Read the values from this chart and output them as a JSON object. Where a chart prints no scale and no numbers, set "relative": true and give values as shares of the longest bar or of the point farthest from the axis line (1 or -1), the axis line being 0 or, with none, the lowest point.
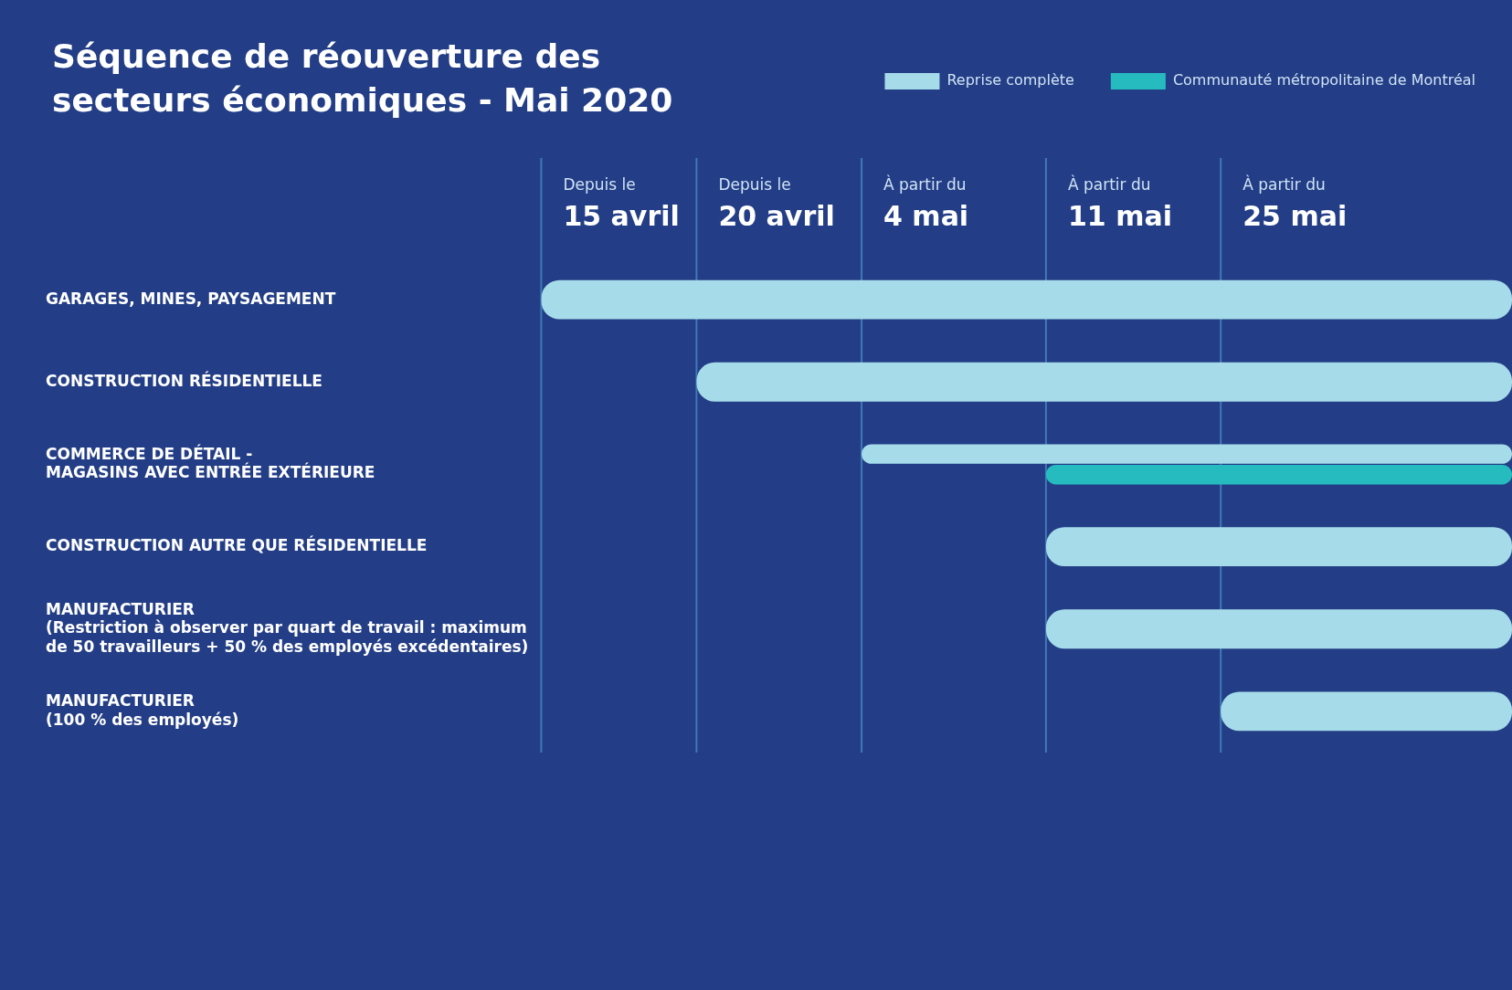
{
  "chart_data": {
    "type": "bar",
    "orientation": "horizontal",
    "relative": true,
    "title": "Séquence de réouverture des secteurs économiques - Mai 2020",
    "categories": [
      "GARAGES, MINES, PAYSAGEMENT",
      "CONSTRUCTION RÉSIDENTIELLE",
      "COMMERCE DE DÉTAIL -\nMAGASINS AVEC ENTRÉE EXTÉRIEURE",
      "CONSTRUCTION AUTRE QUE RÉSIDENTIELLE",
      "MANUFACTURIER\n(Restriction à observer par quart de travail : maximum\nde 50 travailleurs + 50 % des employés excédentaires)",
      "MANUFACTURIER\n(100 % des employés)"
    ],
    "series": [
      {
        "name": "Reprise complète",
        "color": "#a6dbe9",
        "values": [
          1,
          0.84,
          0.67,
          0.48,
          0.48,
          0.3
        ]
      },
      {
        "name": "Communauté métropolitaine de Montréal",
        "color": "#26bbbf",
        "values": [
          null,
          null,
          0.48,
          null,
          null,
          null
        ]
      }
    ],
    "ref_lines": [
      {
        "axis": "x",
        "value": 1,
        "label": "Depuis le\n15 avril",
        "color": "#3f79b8"
      },
      {
        "axis": "x",
        "value": 0.84,
        "label": "Depuis le\n20 avril",
        "color": "#3f79b8"
      },
      {
        "axis": "x",
        "value": 0.67,
        "label": "À partir du\n4 mai",
        "color": "#3f79b8"
      },
      {
        "axis": "x",
        "value": 0.48,
        "label": "À partir du\n11 mai",
        "color": "#3f79b8"
      },
      {
        "axis": "x",
        "value": 0.3,
        "label": "À partir du\n25 mai",
        "color": "#3f79b8"
      }
    ],
    "legend": "top right"
  }
}
